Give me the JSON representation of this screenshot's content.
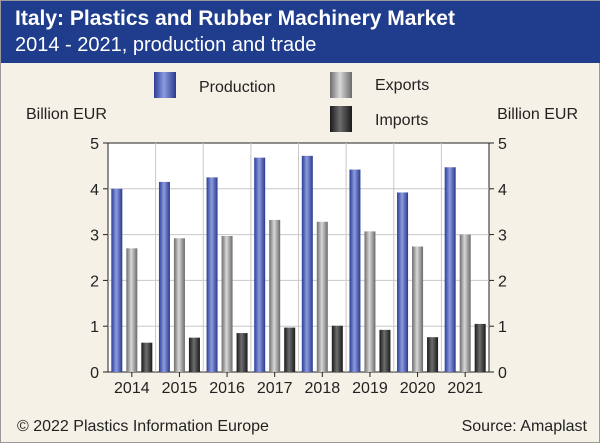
{
  "header": {
    "title": "Italy: Plastics and Rubber Machinery Market",
    "subtitle": "2014 - 2021, production and trade"
  },
  "footer": {
    "copyright": "© 2022 Plastics Information Europe",
    "source": "Source: Amaplast"
  },
  "colors": {
    "header_bg": "#1f3d8c",
    "production": "#3a4fb0",
    "exports": "#9a9a9a",
    "imports": "#2b2b2b",
    "background": "#f5f1e6"
  },
  "chart_data": {
    "type": "bar",
    "categories": [
      "2014",
      "2015",
      "2016",
      "2017",
      "2018",
      "2019",
      "2020",
      "2021"
    ],
    "series": [
      {
        "name": "Production",
        "values": [
          4.0,
          4.15,
          4.25,
          4.68,
          4.72,
          4.42,
          3.92,
          4.47
        ]
      },
      {
        "name": "Exports",
        "values": [
          2.7,
          2.92,
          2.97,
          3.32,
          3.28,
          3.07,
          2.74,
          3.0
        ]
      },
      {
        "name": "Imports",
        "values": [
          0.64,
          0.75,
          0.85,
          0.97,
          1.01,
          0.92,
          0.76,
          1.05
        ]
      }
    ],
    "ylabel_left": "Billion EUR",
    "ylabel_right": "Billion EUR",
    "ylim": [
      0,
      5
    ],
    "yticks": [
      "0",
      "1",
      "2",
      "3",
      "4",
      "5"
    ],
    "grid": true,
    "legend_position": "top"
  }
}
